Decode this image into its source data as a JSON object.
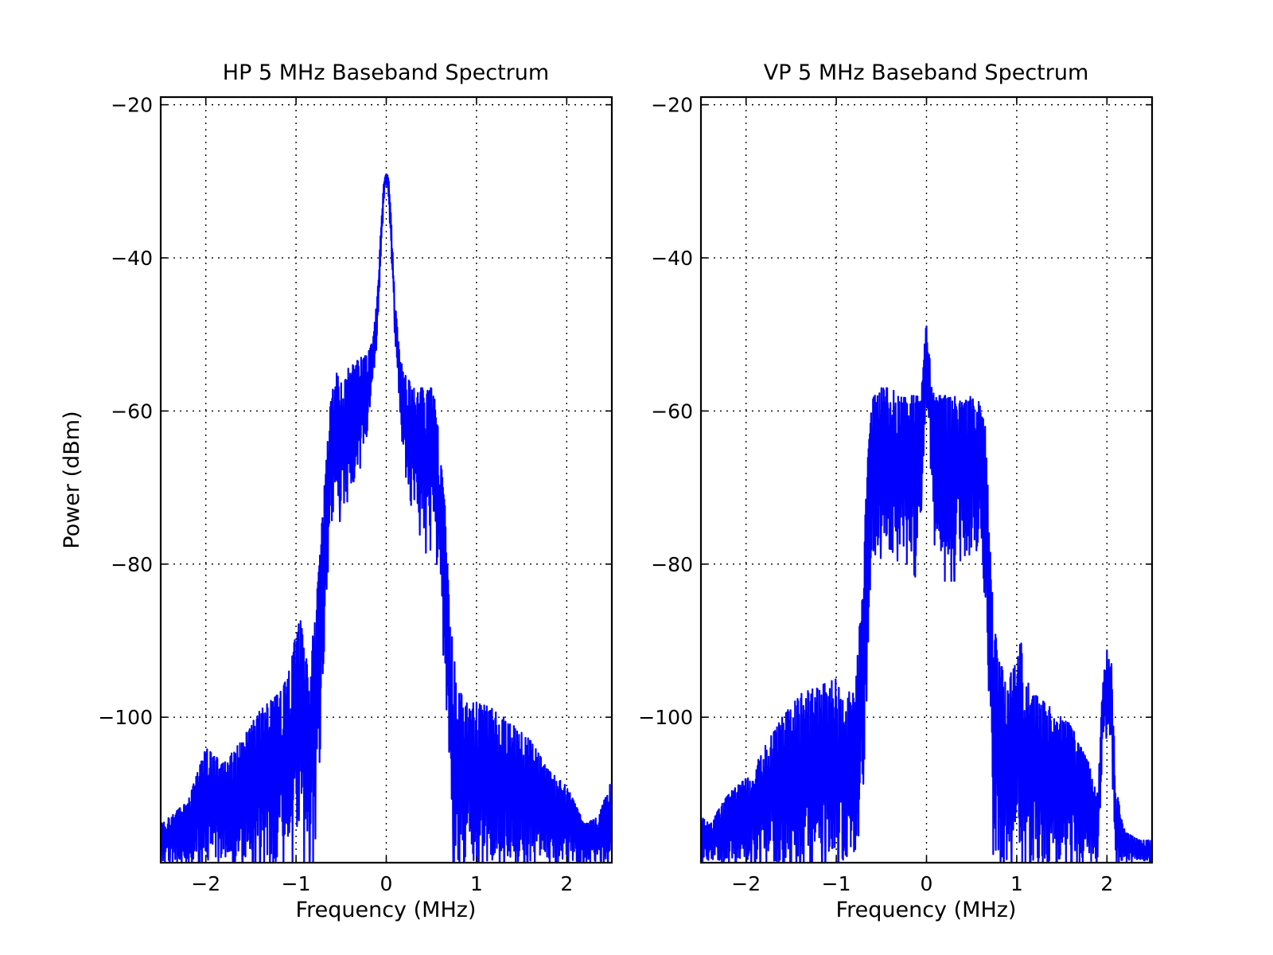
{
  "chart_data": [
    {
      "type": "line",
      "title": "HP 5 MHz Baseband Spectrum",
      "xlabel": "Frequency (MHz)",
      "ylabel": "Power (dBm)",
      "xlim": [
        -2.5,
        2.5
      ],
      "ylim": [
        -119,
        -19
      ],
      "xticks": [
        -2,
        -1,
        0,
        1,
        2
      ],
      "xtick_labels": [
        "−2",
        "−1",
        "0",
        "1",
        "2"
      ],
      "yticks": [
        -20,
        -40,
        -60,
        -80,
        -100
      ],
      "ytick_labels": [
        "−20",
        "−40",
        "−60",
        "−80",
        "−100"
      ],
      "grid": true,
      "color": "#0000ff",
      "series": [
        {
          "x": [
            -2.5,
            -2.2,
            -2.0,
            -1.8,
            -1.6,
            -1.4,
            -1.2,
            -1.1,
            -1.0,
            -0.95,
            -0.9,
            -0.85,
            -0.8,
            -0.75,
            -0.7,
            -0.65,
            -0.6,
            -0.55,
            -0.5,
            -0.45,
            -0.4,
            -0.35,
            -0.3,
            -0.25,
            -0.2,
            -0.15,
            -0.1,
            -0.06,
            -0.03,
            -0.01,
            0.0,
            0.01,
            0.03,
            0.06,
            0.1,
            0.15,
            0.2,
            0.25,
            0.3,
            0.35,
            0.4,
            0.45,
            0.5,
            0.55,
            0.6,
            0.65,
            0.7,
            0.75,
            0.8,
            0.9,
            1.0,
            1.2,
            1.4,
            1.6,
            1.8,
            2.0,
            2.2,
            2.35,
            2.5
          ],
          "y_upper": [
            -114,
            -111,
            -104,
            -106,
            -103,
            -99,
            -97,
            -95,
            -89,
            -87,
            -92,
            -93,
            -88,
            -81,
            -72,
            -64,
            -56,
            -55,
            -56,
            -55,
            -54,
            -54,
            -53,
            -53,
            -52,
            -51,
            -45,
            -36,
            -30,
            -29,
            -29,
            -29,
            -30,
            -36,
            -46,
            -53,
            -55,
            -56,
            -57,
            -57,
            -57,
            -57,
            -57,
            -59,
            -66,
            -72,
            -86,
            -92,
            -96,
            -98,
            -98,
            -99,
            -101,
            -103,
            -107,
            -109,
            -114,
            -113,
            -108
          ],
          "y_lower": [
            -119,
            -119,
            -119,
            -119,
            -119,
            -119,
            -119,
            -119,
            -116,
            -113,
            -119,
            -119,
            -116,
            -106,
            -94,
            -84,
            -75,
            -72,
            -73,
            -72,
            -72,
            -70,
            -68,
            -66,
            -62,
            -57,
            -50,
            -41,
            -33,
            -31,
            -30,
            -31,
            -33,
            -41,
            -51,
            -60,
            -68,
            -72,
            -73,
            -74,
            -75,
            -77,
            -76,
            -80,
            -86,
            -92,
            -106,
            -119,
            -119,
            -119,
            -119,
            -119,
            -119,
            -119,
            -119,
            -119,
            -119,
            -119,
            -119
          ]
        }
      ]
    },
    {
      "type": "line",
      "title": "VP 5 MHz Baseband Spectrum",
      "xlabel": "Frequency (MHz)",
      "ylabel": "",
      "xlim": [
        -2.5,
        2.5
      ],
      "ylim": [
        -119,
        -19
      ],
      "xticks": [
        -2,
        -1,
        0,
        1,
        2
      ],
      "xtick_labels": [
        "−2",
        "−1",
        "0",
        "1",
        "2"
      ],
      "yticks": [
        -20,
        -40,
        -60,
        -80,
        -100
      ],
      "ytick_labels": [
        "−20",
        "−40",
        "−60",
        "−80",
        "−100"
      ],
      "grid": true,
      "color": "#0000ff",
      "series": [
        {
          "x": [
            -2.5,
            -2.4,
            -2.2,
            -2.0,
            -1.8,
            -1.6,
            -1.4,
            -1.2,
            -1.0,
            -0.9,
            -0.8,
            -0.75,
            -0.7,
            -0.65,
            -0.6,
            -0.5,
            -0.4,
            -0.3,
            -0.2,
            -0.1,
            -0.05,
            -0.02,
            0.0,
            0.02,
            0.05,
            0.1,
            0.2,
            0.3,
            0.4,
            0.5,
            0.6,
            0.65,
            0.7,
            0.75,
            0.8,
            0.9,
            1.0,
            1.05,
            1.1,
            1.2,
            1.4,
            1.6,
            1.8,
            1.9,
            1.95,
            2.0,
            2.05,
            2.1,
            2.2,
            2.35,
            2.5
          ],
          "y_upper": [
            -113,
            -114,
            -110,
            -108,
            -104,
            -100,
            -97,
            -96,
            -95,
            -98,
            -95,
            -89,
            -79,
            -66,
            -58,
            -57,
            -57,
            -58,
            -58,
            -58,
            -56,
            -51,
            -48,
            -50,
            -55,
            -58,
            -58,
            -58,
            -59,
            -58,
            -59,
            -62,
            -75,
            -88,
            -92,
            -96,
            -91,
            -90,
            -95,
            -97,
            -99,
            -101,
            -106,
            -110,
            -96,
            -91,
            -93,
            -109,
            -115,
            -116,
            -116
          ],
          "y_lower": [
            -119,
            -119,
            -119,
            -119,
            -119,
            -119,
            -119,
            -119,
            -119,
            -119,
            -119,
            -116,
            -106,
            -91,
            -80,
            -77,
            -76,
            -78,
            -78,
            -80,
            -70,
            -61,
            -58,
            -61,
            -67,
            -78,
            -80,
            -80,
            -80,
            -80,
            -79,
            -86,
            -100,
            -119,
            -119,
            -119,
            -117,
            -116,
            -119,
            -119,
            -119,
            -119,
            -119,
            -119,
            -106,
            -101,
            -104,
            -119,
            -119,
            -119,
            -119
          ]
        }
      ]
    }
  ]
}
